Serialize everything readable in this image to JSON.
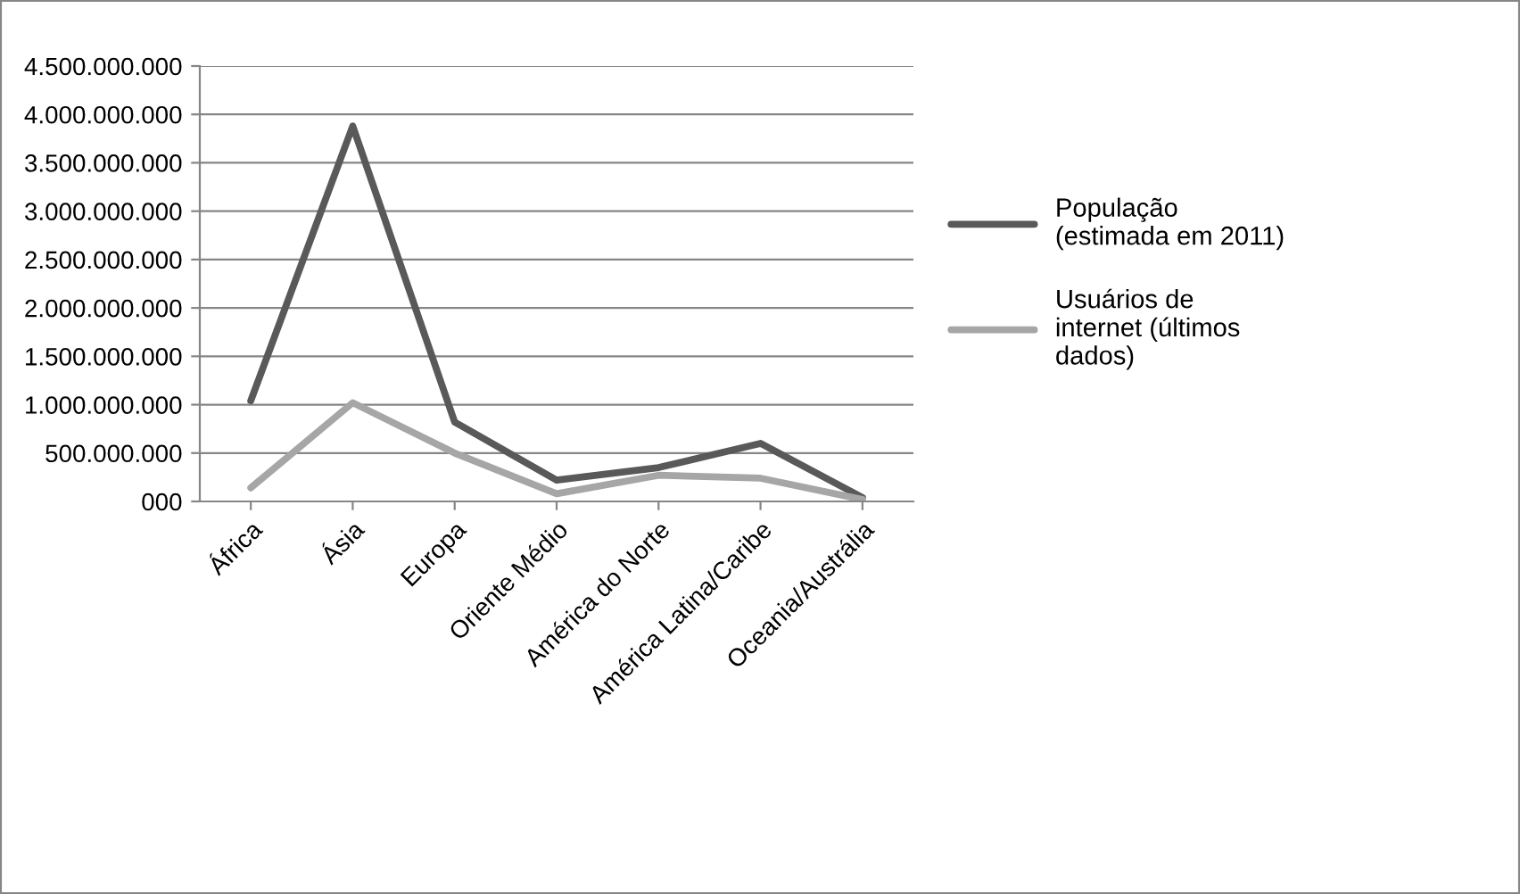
{
  "chart_data": {
    "type": "line",
    "categories": [
      "África",
      "Ásia",
      "Europa",
      "Oriente Médio",
      "América do Norte",
      "América Latina/Caribe",
      "Oceania/Austrália"
    ],
    "series": [
      {
        "name": "População\n(estimada em 2011)",
        "color": "#595959",
        "values": [
          1040000000,
          3880000000,
          820000000,
          220000000,
          350000000,
          600000000,
          40000000
        ]
      },
      {
        "name": "Usuários de\ninternet (últimos\ndados)",
        "color": "#a6a6a6",
        "values": [
          140000000,
          1020000000,
          500000000,
          80000000,
          270000000,
          240000000,
          20000000
        ]
      }
    ],
    "ylim": [
      0,
      4500000000
    ],
    "yticks": [
      {
        "value": 0,
        "label": "000"
      },
      {
        "value": 500000000,
        "label": "500.000.000"
      },
      {
        "value": 1000000000,
        "label": "1.000.000.000"
      },
      {
        "value": 1500000000,
        "label": "1.500.000.000"
      },
      {
        "value": 2000000000,
        "label": "2.000.000.000"
      },
      {
        "value": 2500000000,
        "label": "2.500.000.000"
      },
      {
        "value": 3000000000,
        "label": "3.000.000.000"
      },
      {
        "value": 3500000000,
        "label": "3.500.000.000"
      },
      {
        "value": 4000000000,
        "label": "4.000.000.000"
      },
      {
        "value": 4500000000,
        "label": "4.500.000.000"
      }
    ],
    "grid": "y",
    "legend": "right",
    "marker": "none",
    "line_style": "solid"
  }
}
